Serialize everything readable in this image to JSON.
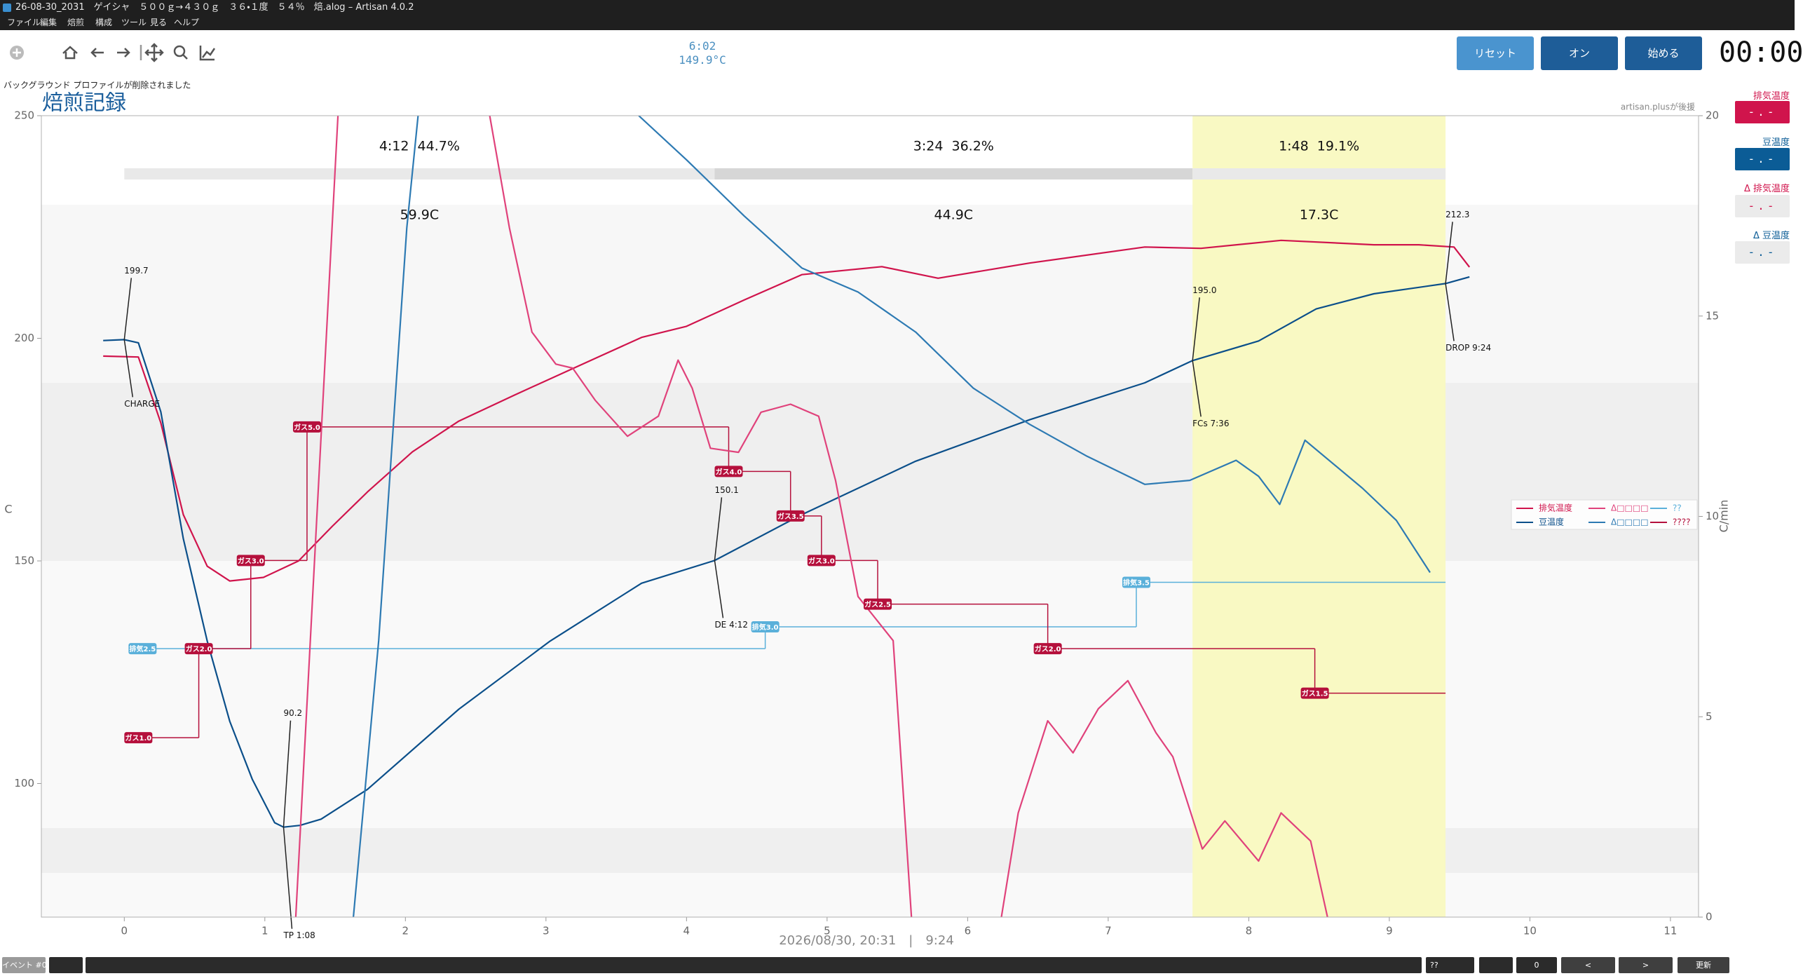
{
  "window": {
    "title": "26-08-30_2031　ゲイシャ　５００ｇ→４３０ｇ　３６・１度　５４％　焙.alog – Artisan 4.0.2"
  },
  "menu": [
    "ファイル",
    "編集",
    "焙煎",
    "構成",
    "ツール",
    "見る",
    "ヘルプ"
  ],
  "readout": {
    "time": "6:02",
    "temp": "149.9°C"
  },
  "buttons": [
    "リセット",
    "オン",
    "始める"
  ],
  "timer": "00:00",
  "message": "バックグラウンド プロファイルが削除されました",
  "sponsor": "artisan.plusが後援",
  "lcds": [
    {
      "label": "排気温度",
      "value": "-.-"
    },
    {
      "label": "豆温度",
      "value": "-.-"
    },
    {
      "label": "Δ 排気温度",
      "value": "-.-"
    },
    {
      "label": "Δ 豆温度",
      "value": "-.-"
    }
  ],
  "bottom_bar": {
    "event_label": "イベント #0",
    "combo": "??",
    "spin": "0",
    "prev": "<",
    "next": ">",
    "update": "更新"
  },
  "chart_data": {
    "type": "line",
    "title": "焙煎記録",
    "ylabel": "C",
    "y2label": "C/min",
    "xlabel": "2026/08/30, 20:31　|　9:24",
    "xlim": [
      -0.59,
      11.2
    ],
    "xticks": [
      0,
      1,
      2,
      3,
      4,
      5,
      6,
      7,
      8,
      9,
      10,
      11
    ],
    "ylim": [
      70,
      250
    ],
    "yticks": [
      100,
      150,
      200,
      250
    ],
    "y2lim": [
      0,
      20
    ],
    "y2ticks": [
      0,
      5,
      10,
      15,
      20
    ],
    "series": [
      {
        "name": "排気温度",
        "color": "#d0144c",
        "x": [
          -0.15,
          0.1,
          0.26,
          0.42,
          0.59,
          0.75,
          0.99,
          1.24,
          1.48,
          1.73,
          2.05,
          2.38,
          2.78,
          3.19,
          3.68,
          4.0,
          4.41,
          4.82,
          5.39,
          5.79,
          6.44,
          7.26,
          7.66,
          8.23,
          8.89,
          9.21,
          9.46,
          9.57
        ],
        "values": [
          196,
          195.8,
          181,
          160.4,
          148.8,
          145.5,
          146.3,
          150,
          157.8,
          165.5,
          174.5,
          181.4,
          187.3,
          193.2,
          200.2,
          202.7,
          208.6,
          214.3,
          216.1,
          213.5,
          216.9,
          220.5,
          220.2,
          222,
          221,
          221,
          220.5,
          216
        ]
      },
      {
        "name": "豆温度",
        "color": "#0b4f8a",
        "x": [
          -0.15,
          0,
          0.1,
          0.26,
          0.42,
          0.59,
          0.75,
          0.91,
          1.07,
          1.133,
          1.25,
          1.4,
          1.73,
          2.38,
          3.03,
          3.68,
          4.2,
          4.82,
          5.63,
          6.44,
          7.26,
          7.6,
          8.07,
          8.48,
          8.89,
          9.4,
          9.57
        ],
        "values": [
          199.5,
          199.7,
          199,
          183.5,
          155,
          132,
          114,
          101,
          91.2,
          90.2,
          90.6,
          92,
          98.7,
          116.7,
          132,
          145,
          150.1,
          160.4,
          172.4,
          181.7,
          190,
          195,
          199.4,
          206.6,
          210,
          212.3,
          213.8
        ]
      },
      {
        "name": "Δ□□□□",
        "color": "#e0427b",
        "axis": "y2",
        "x": [
          1.22,
          1.52,
          2.0,
          2.6,
          2.74,
          2.9,
          3.07,
          3.19,
          3.35,
          3.58,
          3.8,
          3.94,
          4.04,
          4.17,
          4.37,
          4.53,
          4.74,
          4.94,
          5.06,
          5.22,
          5.47,
          5.6,
          5.9,
          6.24,
          6.36,
          6.57,
          6.75,
          6.93,
          7.14,
          7.34,
          7.46,
          7.67,
          7.83,
          8.07,
          8.23,
          8.44,
          8.56
        ],
        "values": [
          0,
          20,
          null,
          20,
          17.2,
          14.6,
          13.8,
          13.7,
          12.9,
          12.0,
          12.5,
          13.9,
          13.2,
          11.7,
          11.6,
          12.6,
          12.8,
          12.5,
          10.9,
          8.0,
          6.9,
          0,
          null,
          0,
          2.6,
          4.9,
          4.1,
          5.2,
          5.9,
          4.6,
          4.0,
          1.7,
          2.4,
          1.4,
          2.6,
          1.9,
          0
        ]
      },
      {
        "name": "Δ□□□□",
        "color": "#2d7ab3",
        "axis": "y2",
        "x": [
          1.63,
          1.81,
          2.01,
          2.09,
          2.9,
          3.66,
          4.0,
          4.41,
          4.82,
          5.22,
          5.63,
          6.04,
          6.44,
          6.85,
          7.26,
          7.58,
          7.91,
          8.07,
          8.22,
          8.4,
          8.81,
          9.05,
          9.29
        ],
        "values": [
          0,
          6.9,
          17.2,
          20,
          null,
          20,
          18.9,
          17.5,
          16.2,
          15.6,
          14.6,
          13.2,
          12.3,
          11.5,
          10.8,
          10.9,
          11.4,
          11.0,
          10.3,
          11.9,
          10.7,
          9.9,
          8.6
        ]
      }
    ],
    "event_series": [
      {
        "name": "??",
        "color": "#5ab0da",
        "events": [
          {
            "label": "排気2.5",
            "x": 0.13,
            "y": 130.3
          },
          {
            "label": "排気3.0",
            "x": 4.56,
            "y": 135.2
          },
          {
            "label": "排気3.5",
            "x": 7.2,
            "y": 145.2
          }
        ]
      },
      {
        "name": "????",
        "color": "#b5103c",
        "events": [
          {
            "label": "ガス1.0",
            "x": 0.1,
            "y": 110.3
          },
          {
            "label": "ガス2.0",
            "x": 0.53,
            "y": 130.3
          },
          {
            "label": "ガス3.0",
            "x": 0.9,
            "y": 150.1
          },
          {
            "label": "ガス5.0",
            "x": 1.3,
            "y": 180.1
          },
          {
            "label": "ガス4.0",
            "x": 4.3,
            "y": 170.1
          },
          {
            "label": "ガス3.5",
            "x": 4.74,
            "y": 160.1
          },
          {
            "label": "ガス3.0",
            "x": 4.96,
            "y": 150.1
          },
          {
            "label": "ガス2.5",
            "x": 5.36,
            "y": 140.3
          },
          {
            "label": "ガス2.0",
            "x": 6.57,
            "y": 130.3
          },
          {
            "label": "ガス1.5",
            "x": 8.47,
            "y": 120.3
          }
        ]
      }
    ],
    "annotations": [
      {
        "label": "CHARGE",
        "x": 0,
        "y": 199.7,
        "y_label": "199.7"
      },
      {
        "label": "TP 1:08",
        "x": 1.133,
        "y": 90.2,
        "y_label": "90.2"
      },
      {
        "label": "DE 4:12",
        "x": 4.2,
        "y": 150.1,
        "y_label": "150.1"
      },
      {
        "label": "FCs 7:36",
        "x": 7.6,
        "y": 195,
        "y_label": "195.0"
      },
      {
        "label": "DROP 9:24",
        "x": 9.4,
        "y": 212.3,
        "y_label": "212.3"
      }
    ],
    "phases": [
      {
        "label": "4:12  44.7%",
        "rise": "59.9C"
      },
      {
        "label": "3:24  36.2%",
        "rise": "44.9C"
      },
      {
        "label": "1:48  19.1%",
        "rise": "17.3C"
      }
    ]
  }
}
